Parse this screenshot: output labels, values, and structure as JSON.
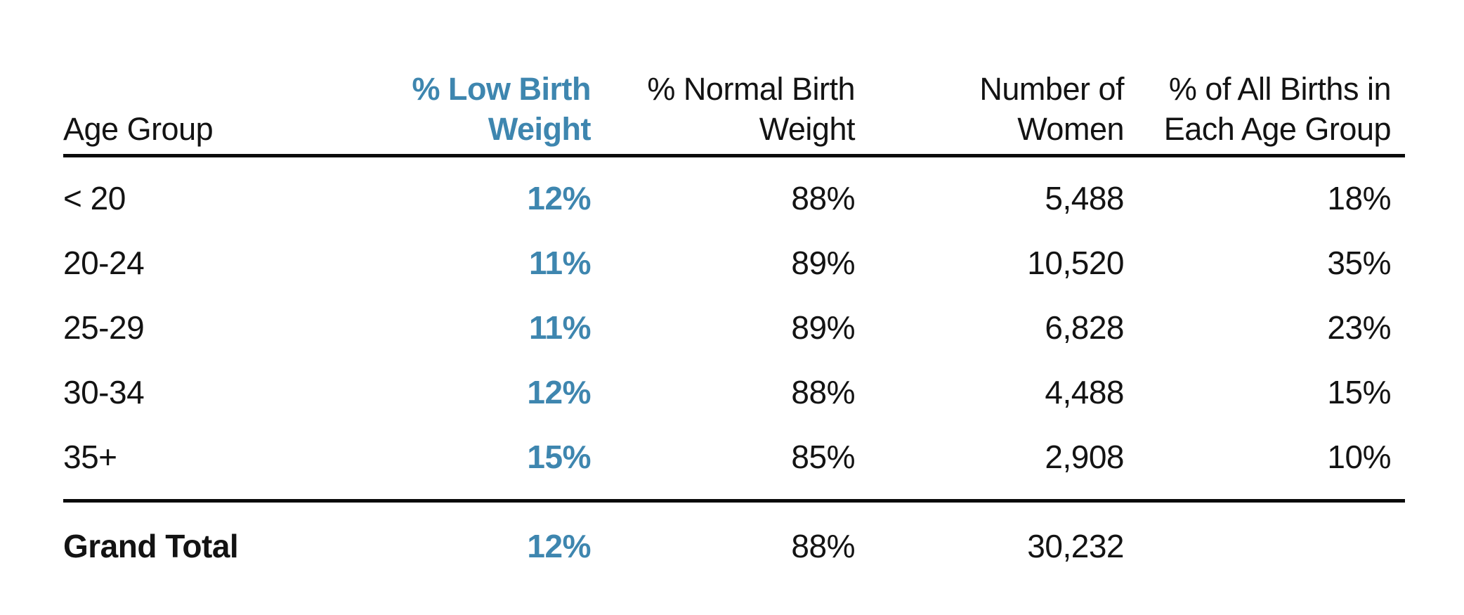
{
  "colors": {
    "accent_blue": "#3e86af",
    "text": "#131313",
    "rule": "#0a0a0a",
    "background": "#ffffff"
  },
  "header": {
    "age": "Age Group",
    "low": [
      "% Low Birth",
      "Weight"
    ],
    "normal": [
      "% Normal Birth",
      "Weight"
    ],
    "women": [
      "Number of",
      "Women"
    ],
    "share": [
      "% of All Births in",
      "Each Age Group"
    ]
  },
  "chart_data": {
    "type": "table",
    "title": "",
    "columns": [
      "Age Group",
      "% Low Birth Weight",
      "% Normal Birth Weight",
      "Number of Women",
      "% of All Births in Each Age Group"
    ],
    "highlighted_column": "% Low Birth Weight",
    "rows": [
      [
        "< 20",
        "12%",
        "88%",
        "5,488",
        "18%"
      ],
      [
        "20-24",
        "11%",
        "89%",
        "10,520",
        "35%"
      ],
      [
        "25-29",
        "11%",
        "89%",
        "6,828",
        "23%"
      ],
      [
        "30-34",
        "12%",
        "88%",
        "4,488",
        "15%"
      ],
      [
        "35+",
        "15%",
        "85%",
        "2,908",
        "10%"
      ],
      [
        "Grand Total",
        "12%",
        "88%",
        "30,232",
        ""
      ]
    ]
  }
}
